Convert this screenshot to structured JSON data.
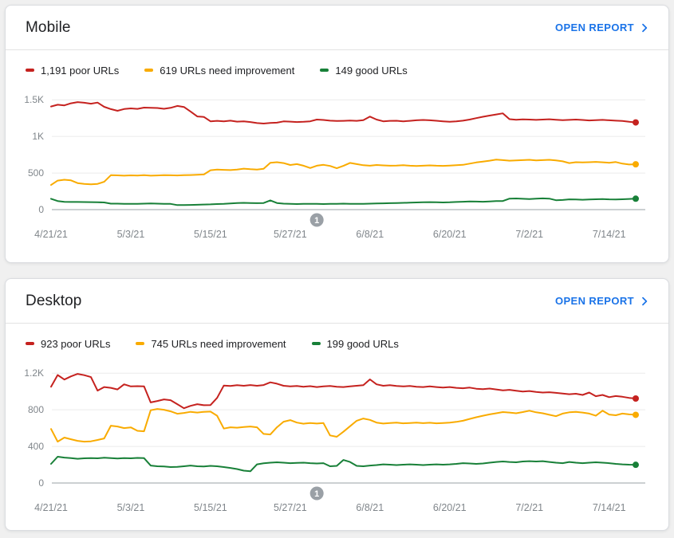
{
  "colors": {
    "poor": "#c5221f",
    "needs_improvement": "#f9ab00",
    "good": "#188038",
    "link": "#1a73e8",
    "axis_text": "#80868b",
    "grid": "#ebebeb",
    "axis_line": "#9aa0a6",
    "marker": "#9aa0a6",
    "marker_text": "#ffffff",
    "legend_text": "#202124",
    "card_title": "#202124"
  },
  "cards": [
    {
      "title": "Mobile",
      "open_report": "OPEN REPORT",
      "legend": [
        {
          "label": "1,191 poor URLs",
          "color_key": "poor"
        },
        {
          "label": "619 URLs need improvement",
          "color_key": "needs_improvement"
        },
        {
          "label": "149 good URLs",
          "color_key": "good"
        }
      ]
    },
    {
      "title": "Desktop",
      "open_report": "OPEN REPORT",
      "legend": [
        {
          "label": "923 poor URLs",
          "color_key": "poor"
        },
        {
          "label": "745 URLs need improvement",
          "color_key": "needs_improvement"
        },
        {
          "label": "199 good URLs",
          "color_key": "good"
        }
      ]
    }
  ],
  "chart_data": [
    {
      "type": "line",
      "title": "Mobile",
      "x_tick_labels": [
        "4/21/21",
        "5/3/21",
        "5/15/21",
        "5/27/21",
        "6/8/21",
        "6/20/21",
        "7/2/21",
        "7/14/21"
      ],
      "x_tick_days": [
        0,
        12,
        24,
        36,
        48,
        60,
        72,
        84
      ],
      "x_start_date": "4/21/21",
      "ylim": [
        0,
        1600
      ],
      "y_ticks": [
        {
          "value": 0,
          "label": "0"
        },
        {
          "value": 500,
          "label": "500"
        },
        {
          "value": 1000,
          "label": "1K"
        },
        {
          "value": 1500,
          "label": "1.5K"
        }
      ],
      "grid": true,
      "legend_position": "top",
      "annotation": {
        "label": "1",
        "day": 40
      },
      "series": [
        {
          "name": "poor URLs",
          "color_key": "poor",
          "end_value": 1191,
          "values": [
            1408,
            1432,
            1424,
            1452,
            1468,
            1460,
            1446,
            1462,
            1404,
            1372,
            1350,
            1374,
            1382,
            1376,
            1393,
            1391,
            1388,
            1377,
            1390,
            1416,
            1402,
            1340,
            1272,
            1266,
            1206,
            1212,
            1206,
            1215,
            1202,
            1206,
            1196,
            1182,
            1176,
            1183,
            1187,
            1205,
            1202,
            1196,
            1200,
            1206,
            1230,
            1224,
            1215,
            1210,
            1213,
            1216,
            1212,
            1222,
            1270,
            1230,
            1206,
            1212,
            1214,
            1206,
            1212,
            1220,
            1225,
            1220,
            1214,
            1206,
            1200,
            1205,
            1215,
            1230,
            1250,
            1268,
            1284,
            1300,
            1315,
            1235,
            1228,
            1232,
            1230,
            1226,
            1230,
            1234,
            1228,
            1222,
            1226,
            1230,
            1224,
            1218,
            1222,
            1226,
            1220,
            1215,
            1210,
            1200,
            1191
          ]
        },
        {
          "name": "URLs need improvement",
          "color_key": "needs_improvement",
          "end_value": 619,
          "values": [
            336,
            396,
            408,
            400,
            362,
            350,
            346,
            352,
            380,
            470,
            468,
            464,
            468,
            466,
            470,
            464,
            467,
            471,
            469,
            467,
            470,
            472,
            476,
            480,
            538,
            546,
            543,
            540,
            546,
            560,
            552,
            546,
            558,
            640,
            648,
            636,
            610,
            622,
            600,
            568,
            600,
            612,
            596,
            565,
            598,
            638,
            622,
            606,
            600,
            610,
            604,
            600,
            602,
            606,
            600,
            596,
            600,
            604,
            600,
            598,
            602,
            606,
            612,
            628,
            644,
            656,
            668,
            682,
            676,
            668,
            672,
            676,
            680,
            672,
            676,
            680,
            672,
            660,
            636,
            648,
            644,
            648,
            652,
            646,
            640,
            650,
            628,
            616,
            619
          ]
        },
        {
          "name": "good URLs",
          "color_key": "good",
          "end_value": 149,
          "values": [
            148,
            118,
            106,
            104,
            104,
            103,
            102,
            100,
            98,
            82,
            82,
            80,
            80,
            80,
            82,
            84,
            82,
            80,
            78,
            62,
            62,
            64,
            66,
            70,
            72,
            76,
            80,
            85,
            90,
            93,
            90,
            88,
            90,
            126,
            90,
            82,
            78,
            76,
            78,
            80,
            78,
            76,
            78,
            80,
            82,
            80,
            78,
            80,
            82,
            84,
            86,
            88,
            90,
            92,
            95,
            98,
            100,
            102,
            100,
            98,
            100,
            104,
            108,
            112,
            110,
            108,
            112,
            116,
            118,
            150,
            152,
            148,
            145,
            150,
            154,
            150,
            128,
            132,
            140,
            138,
            135,
            138,
            142,
            145,
            140,
            138,
            142,
            146,
            149
          ]
        }
      ]
    },
    {
      "type": "line",
      "title": "Desktop",
      "x_tick_labels": [
        "4/21/21",
        "5/3/21",
        "5/15/21",
        "5/27/21",
        "6/8/21",
        "6/20/21",
        "7/2/21",
        "7/14/21"
      ],
      "x_tick_days": [
        0,
        12,
        24,
        36,
        48,
        60,
        72,
        84
      ],
      "x_start_date": "4/21/21",
      "ylim": [
        0,
        1280
      ],
      "y_ticks": [
        {
          "value": 0,
          "label": "0"
        },
        {
          "value": 400,
          "label": "400"
        },
        {
          "value": 800,
          "label": "800"
        },
        {
          "value": 1200,
          "label": "1.2K"
        }
      ],
      "grid": true,
      "legend_position": "top",
      "annotation": {
        "label": "1",
        "day": 40
      },
      "series": [
        {
          "name": "poor URLs",
          "color_key": "poor",
          "end_value": 923,
          "values": [
            1052,
            1180,
            1130,
            1165,
            1192,
            1178,
            1157,
            1009,
            1048,
            1040,
            1022,
            1078,
            1055,
            1058,
            1055,
            880,
            896,
            913,
            905,
            861,
            817,
            843,
            861,
            850,
            852,
            930,
            1065,
            1060,
            1068,
            1062,
            1070,
            1062,
            1070,
            1100,
            1085,
            1062,
            1055,
            1060,
            1052,
            1058,
            1048,
            1055,
            1060,
            1052,
            1048,
            1055,
            1062,
            1068,
            1132,
            1078,
            1062,
            1068,
            1060,
            1055,
            1060,
            1052,
            1048,
            1055,
            1048,
            1042,
            1048,
            1040,
            1035,
            1042,
            1030,
            1025,
            1032,
            1022,
            1012,
            1018,
            1008,
            1000,
            1005,
            995,
            988,
            992,
            985,
            978,
            970,
            975,
            962,
            988,
            948,
            962,
            938,
            950,
            942,
            930,
            923
          ]
        },
        {
          "name": "URLs need improvement",
          "color_key": "needs_improvement",
          "end_value": 745,
          "values": [
            590,
            452,
            496,
            478,
            461,
            452,
            455,
            470,
            487,
            626,
            617,
            600,
            608,
            570,
            565,
            795,
            809,
            800,
            783,
            757,
            765,
            778,
            770,
            778,
            780,
            735,
            595,
            609,
            604,
            611,
            617,
            609,
            536,
            530,
            609,
            670,
            687,
            660,
            648,
            655,
            650,
            655,
            520,
            505,
            560,
            620,
            680,
            704,
            690,
            660,
            650,
            655,
            660,
            652,
            656,
            660,
            654,
            658,
            652,
            656,
            660,
            668,
            680,
            700,
            718,
            735,
            750,
            762,
            775,
            770,
            762,
            775,
            790,
            772,
            762,
            745,
            730,
            758,
            772,
            778,
            770,
            758,
            735,
            790,
            748,
            740,
            758,
            750,
            745
          ]
        },
        {
          "name": "good URLs",
          "color_key": "good",
          "end_value": 199,
          "values": [
            209,
            287,
            278,
            272,
            265,
            270,
            272,
            270,
            276,
            272,
            268,
            272,
            270,
            274,
            272,
            191,
            183,
            180,
            174,
            176,
            183,
            191,
            183,
            180,
            187,
            183,
            174,
            165,
            152,
            135,
            128,
            204,
            215,
            222,
            226,
            222,
            217,
            220,
            222,
            217,
            213,
            217,
            183,
            187,
            252,
            230,
            187,
            183,
            191,
            196,
            204,
            200,
            196,
            200,
            204,
            200,
            196,
            200,
            204,
            200,
            204,
            209,
            217,
            213,
            209,
            213,
            222,
            230,
            235,
            230,
            226,
            235,
            239,
            235,
            239,
            230,
            222,
            217,
            230,
            222,
            217,
            222,
            226,
            222,
            217,
            209,
            204,
            200,
            199
          ]
        }
      ]
    }
  ]
}
